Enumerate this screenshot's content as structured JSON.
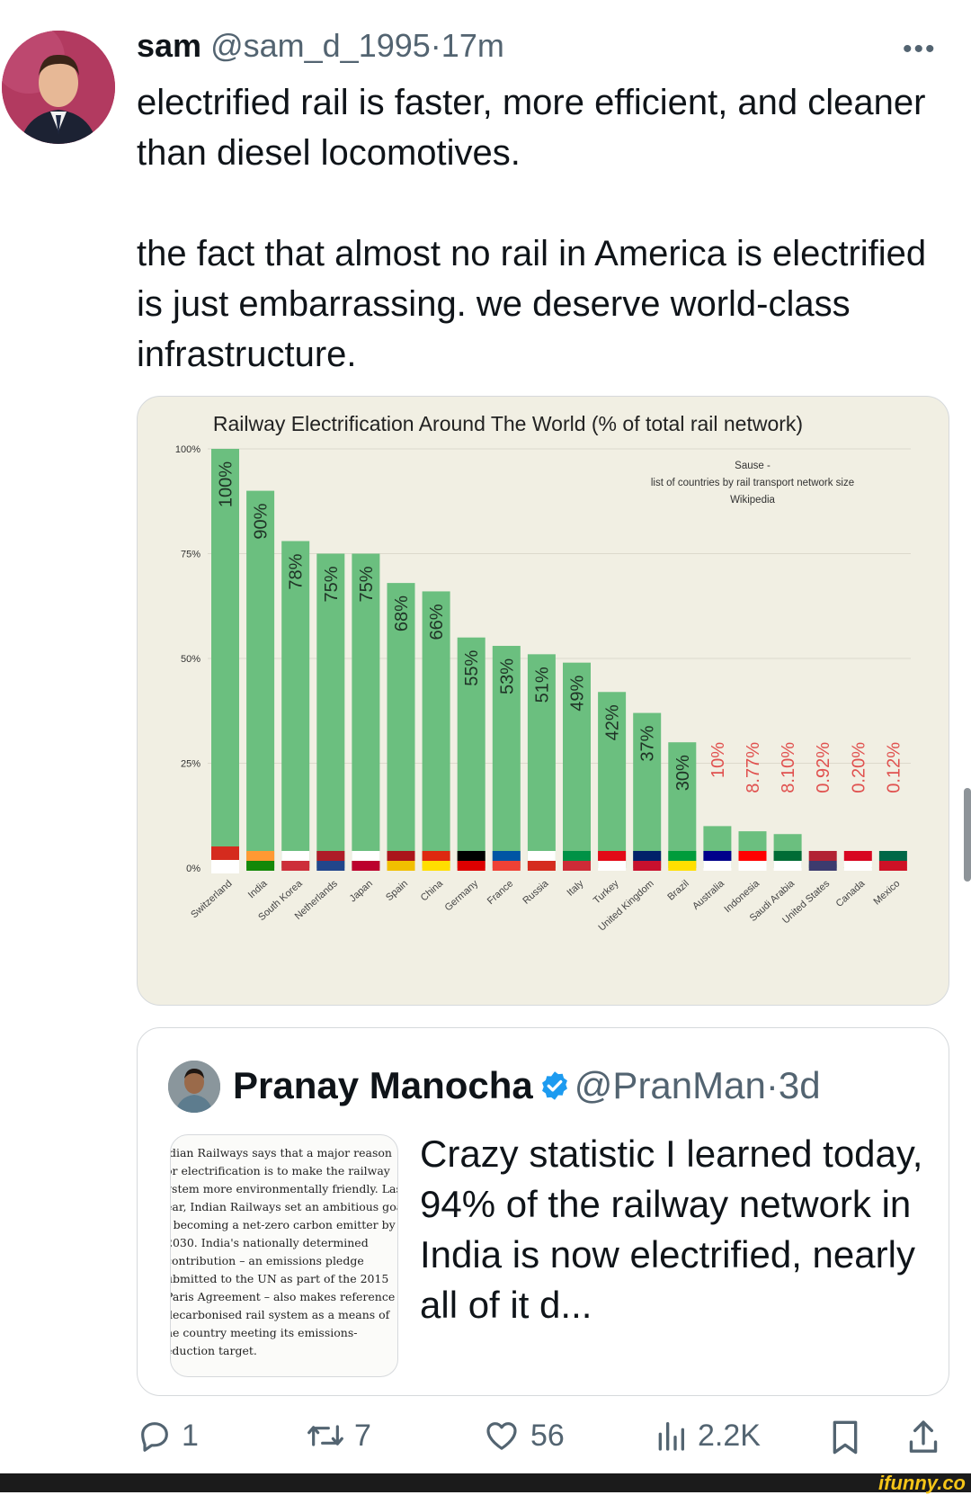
{
  "tweet": {
    "author": "sam",
    "handle": "@sam_d_1995",
    "separator": "·",
    "age": "17m",
    "text_p1": "electrified rail is faster, more efficient, and cleaner than diesel locomotives.",
    "text_p2": "the fact that almost no rail in America is electrified is just embarrassing. we deserve world-class infrastructure.",
    "more_icon": "more-horizontal-icon"
  },
  "chart_data": {
    "type": "bar",
    "title": "Railway Electrification Around The World (% of total rail network)",
    "source": [
      "Sause -",
      "list of countries by rail transport network size",
      "Wikipedia"
    ],
    "categories": [
      "Switzerland",
      "India",
      "South Korea",
      "Netherlands",
      "Japan",
      "Spain",
      "China",
      "Germany",
      "France",
      "Russia",
      "Italy",
      "Turkey",
      "United Kingdom",
      "Brazil",
      "Australia",
      "Indonesia",
      "Saudi Arabia",
      "United States",
      "Canada",
      "Mexico"
    ],
    "values": [
      100,
      90,
      78,
      75,
      75,
      68,
      66,
      55,
      53,
      51,
      49,
      42,
      37,
      30,
      10,
      8.77,
      8.1,
      0.92,
      0.2,
      0.12
    ],
    "labels": [
      "100%",
      "90%",
      "78%",
      "75%",
      "75%",
      "68%",
      "66%",
      "55%",
      "53%",
      "51%",
      "49%",
      "42%",
      "37%",
      "30%",
      "10%",
      "8.77%",
      "8.10%",
      "0.92%",
      "0.20%",
      "0.12%"
    ],
    "yticks": [
      "0%",
      "25%",
      "50%",
      "75%",
      "100%"
    ],
    "ylim": [
      0,
      100
    ],
    "grid": true,
    "colors": {
      "bar": "#6bbf7f",
      "label_inside": "#1f3326",
      "label_outside": "#e0514f",
      "background": "#f1efe3"
    }
  },
  "quote": {
    "author": "Pranay Manocha",
    "handle": "@PranMan",
    "separator": "·",
    "age": "3d",
    "verified_icon": "verified-badge-icon",
    "text": "Crazy statistic I learned today, 94% of the railway network in India is now electrified, nearly all of it d...",
    "thumb_lines": [
      ".dian Railways says that a major reason",
      "or electrification is to make the railway",
      "ystem more environmentally friendly. Last",
      "ear, Indian Railways set an ambitious goal",
      "f becoming a net-zero carbon emitter by",
      "2030. India's nationally determined",
      "contribution – an emissions pledge",
      "ubmitted to the UN as part of the 2015",
      "Paris Agreement – also makes reference to",
      "decarbonised rail system as a means of",
      "he country meeting its emissions-",
      "eduction target."
    ]
  },
  "actions": {
    "replies": "1",
    "reposts": "7",
    "likes": "56",
    "views": "2.2K"
  },
  "footer": {
    "logo": "ifunny.co"
  }
}
